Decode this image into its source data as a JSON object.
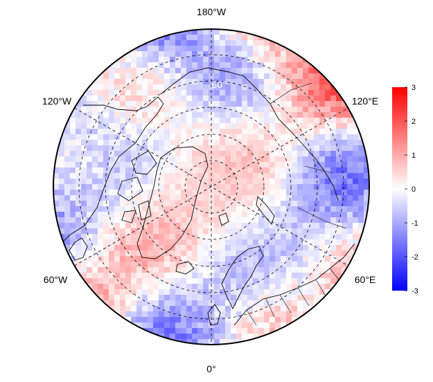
{
  "map": {
    "projection": "north-polar-stereographic",
    "longitude_labels": {
      "top": "180°W",
      "bottom": "0°",
      "upper_left": "120°W",
      "upper_right": "120°E",
      "lower_left": "60°W",
      "lower_right": "60°E"
    },
    "latitude_label": "60°",
    "graticule_style": "dashed",
    "colors": {
      "negative": "#0000ff",
      "neutral": "#ffffff",
      "positive": "#ff0000",
      "coastline": "#000000"
    }
  },
  "colorbar": {
    "min": -3,
    "max": 3,
    "ticks": [
      "3",
      "2",
      "1",
      "0",
      "-1",
      "-2",
      "-3"
    ]
  }
}
